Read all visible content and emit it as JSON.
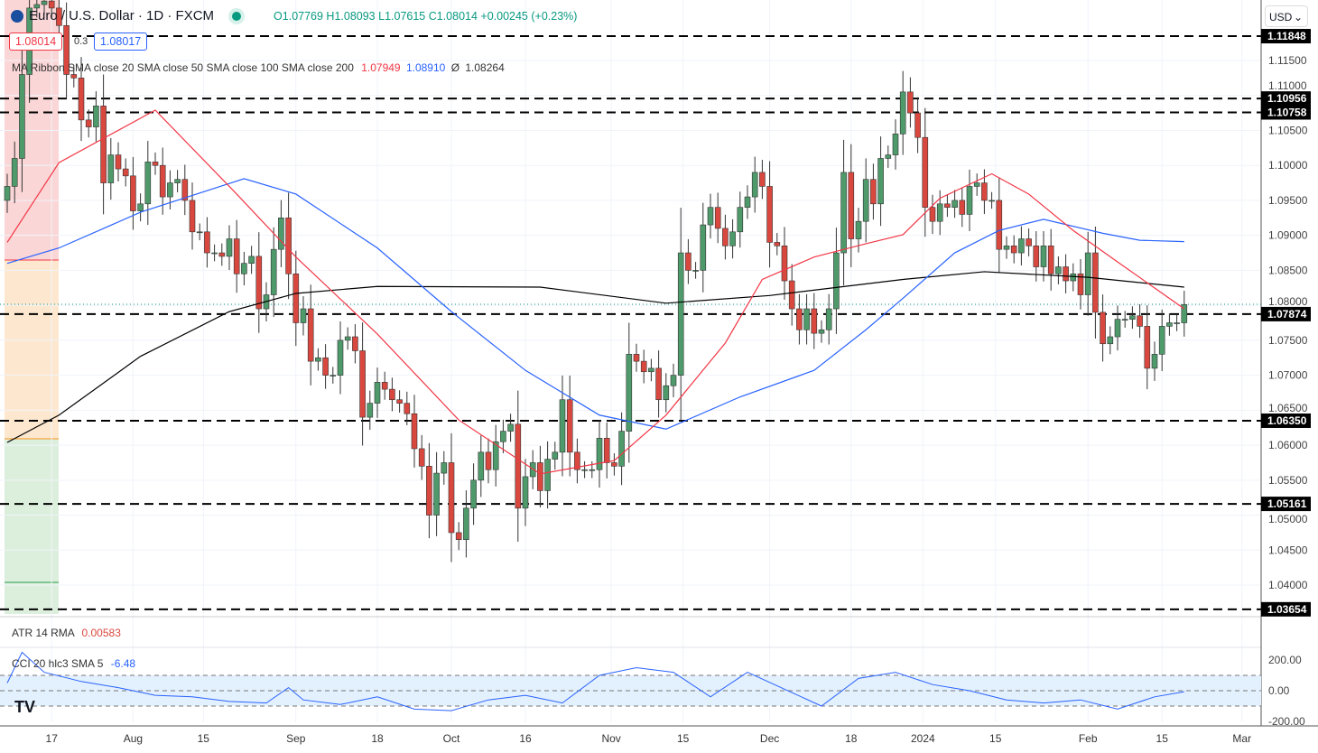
{
  "header": {
    "symbol": "Euro / U.S. Dollar · 1D · FXCM",
    "ohlc": "O1.07769 H1.08093 L1.07615 C1.08014 +0.00245 (+0.23%)",
    "bid": "1.08014",
    "spread": "0.3",
    "ask": "1.08017",
    "currency": "USD"
  },
  "legend": {
    "ma_label": "MA Ribbon SMA close 20 SMA close 50 SMA close 100 SMA close 200",
    "ma20": "1.07949",
    "ma50": "1.08910",
    "ma200_symbol": "Ø",
    "ma200": "1.08264",
    "atr_label": "ATR 14 RMA",
    "atr_value": "0.00583",
    "cci_label": "CCI 20 hlc3 SMA 5",
    "cci_value": "-6.48"
  },
  "colors": {
    "up": "#4f9a6b",
    "down": "#d9483f",
    "ma20": "#f23645",
    "ma50": "#2962ff",
    "ma200": "#000000",
    "cci": "#2962ff"
  },
  "chart_data": {
    "type": "candlestick",
    "ylim": [
      1.0345,
      1.1235
    ],
    "y_ticks": [
      "1.11500",
      "1.11000",
      "1.10500",
      "1.10000",
      "1.09500",
      "1.09000",
      "1.08500",
      "1.08000",
      "1.07500",
      "1.07000",
      "1.06500",
      "1.06000",
      "1.05500",
      "1.05000",
      "1.04500",
      "1.04000"
    ],
    "levels": [
      "1.11848",
      "1.10956",
      "1.10758",
      "1.07874",
      "1.06350",
      "1.05161",
      "1.03654"
    ],
    "x_ticks": [
      {
        "label": "17",
        "i": 6
      },
      {
        "label": "Aug",
        "i": 17
      },
      {
        "label": "15",
        "i": 26.5
      },
      {
        "label": "Sep",
        "i": 39
      },
      {
        "label": "18",
        "i": 50
      },
      {
        "label": "Oct",
        "i": 60
      },
      {
        "label": "16",
        "i": 70
      },
      {
        "label": "Nov",
        "i": 81.6
      },
      {
        "label": "15",
        "i": 91.3
      },
      {
        "label": "Dec",
        "i": 103
      },
      {
        "label": "18",
        "i": 114
      },
      {
        "label": "2024",
        "i": 123.7
      },
      {
        "label": "15",
        "i": 133.5
      },
      {
        "label": "Feb",
        "i": 146
      },
      {
        "label": "15",
        "i": 156
      },
      {
        "label": "Mar",
        "i": 166.8
      }
    ],
    "close": [
      1.097,
      1.101,
      1.113,
      1.1225,
      1.123,
      1.1235,
      1.1225,
      1.12,
      1.113,
      1.1125,
      1.1065,
      1.1055,
      1.1085,
      1.0975,
      1.1015,
      1.0995,
      1.0985,
      1.0935,
      1.0945,
      1.1005,
      1.1,
      1.0955,
      1.0975,
      1.098,
      1.095,
      1.0905,
      1.0905,
      1.0875,
      1.0875,
      1.087,
      1.0895,
      1.0845,
      1.086,
      1.087,
      1.0795,
      1.0815,
      1.088,
      1.0925,
      1.0845,
      1.0775,
      1.0795,
      1.072,
      1.0725,
      1.07,
      1.07,
      1.075,
      1.0755,
      1.0735,
      1.064,
      1.066,
      1.069,
      1.068,
      1.0665,
      1.066,
      1.0645,
      1.0595,
      1.057,
      1.05,
      1.056,
      1.0575,
      1.0475,
      1.0465,
      1.051,
      1.055,
      1.059,
      1.0565,
      1.0605,
      1.062,
      1.063,
      1.051,
      1.0555,
      1.0575,
      1.0535,
      1.058,
      1.059,
      1.0665,
      1.059,
      1.0565,
      1.0565,
      1.0565,
      1.061,
      1.0575,
      1.057,
      1.062,
      1.073,
      1.072,
      1.0705,
      1.071,
      1.0665,
      1.0685,
      1.07,
      1.0875,
      1.085,
      1.085,
      1.0915,
      1.094,
      1.091,
      1.0885,
      1.0905,
      1.094,
      1.0955,
      1.099,
      1.097,
      1.089,
      1.0885,
      1.0835,
      1.0795,
      1.0765,
      1.0795,
      1.076,
      1.0765,
      1.0795,
      1.0875,
      1.099,
      1.0895,
      1.092,
      1.098,
      1.0945,
      1.101,
      1.1015,
      1.1045,
      1.1105,
      1.1075,
      1.104,
      1.094,
      1.092,
      1.0945,
      1.094,
      1.095,
      1.093,
      1.097,
      1.0975,
      1.095,
      1.095,
      1.088,
      1.0885,
      1.0875,
      1.0895,
      1.0885,
      1.0855,
      1.0885,
      1.0845,
      1.0855,
      1.0835,
      1.0845,
      1.0815,
      1.0875,
      1.079,
      1.0745,
      1.0755,
      1.078,
      1.078,
      1.0785,
      1.077,
      1.071,
      1.073,
      1.077,
      1.0775,
      1.0775,
      1.0801
    ],
    "ma20": [
      [
        0,
        1.089
      ],
      [
        7,
        1.1004
      ],
      [
        20,
        1.1079
      ],
      [
        31,
        1.0959
      ],
      [
        39,
        1.0869
      ],
      [
        50,
        1.0759
      ],
      [
        61,
        1.0636
      ],
      [
        72,
        1.0559
      ],
      [
        82,
        1.0578
      ],
      [
        89,
        1.0643
      ],
      [
        97,
        1.0746
      ],
      [
        102,
        1.0837
      ],
      [
        109,
        1.0869
      ],
      [
        116,
        1.0888
      ],
      [
        121,
        1.0901
      ],
      [
        126,
        1.0953
      ],
      [
        133,
        1.0988
      ],
      [
        138,
        1.0959
      ],
      [
        144,
        1.0907
      ],
      [
        150,
        1.0862
      ],
      [
        159,
        1.0795
      ]
    ],
    "ma50": [
      [
        0,
        1.086
      ],
      [
        7,
        1.0882
      ],
      [
        18,
        1.0933
      ],
      [
        32,
        1.0981
      ],
      [
        39,
        1.0959
      ],
      [
        50,
        1.0882
      ],
      [
        60,
        1.0791
      ],
      [
        70,
        1.0707
      ],
      [
        80,
        1.0643
      ],
      [
        89,
        1.0623
      ],
      [
        99,
        1.0669
      ],
      [
        109,
        1.0707
      ],
      [
        116,
        1.0765
      ],
      [
        121,
        1.081
      ],
      [
        128,
        1.0875
      ],
      [
        134,
        1.0907
      ],
      [
        140,
        1.0923
      ],
      [
        148,
        1.0903
      ],
      [
        153,
        1.0893
      ],
      [
        159,
        1.0891
      ]
    ],
    "ma200": [
      [
        0,
        1.0604
      ],
      [
        7,
        1.0643
      ],
      [
        18,
        1.0727
      ],
      [
        30,
        1.0791
      ],
      [
        39,
        1.0817
      ],
      [
        50,
        1.0827
      ],
      [
        72,
        1.0826
      ],
      [
        89,
        1.0803
      ],
      [
        103,
        1.0814
      ],
      [
        121,
        1.0837
      ],
      [
        132,
        1.0848
      ],
      [
        146,
        1.084
      ],
      [
        159,
        1.0826
      ]
    ],
    "cci": {
      "y_ticks": [
        "200.00",
        "0.00",
        "-200.00"
      ],
      "points": [
        [
          0,
          50
        ],
        [
          2,
          250
        ],
        [
          5,
          120
        ],
        [
          10,
          60
        ],
        [
          15,
          20
        ],
        [
          20,
          -30
        ],
        [
          25,
          -40
        ],
        [
          30,
          -70
        ],
        [
          35,
          -80
        ],
        [
          38,
          20
        ],
        [
          40,
          -60
        ],
        [
          45,
          -90
        ],
        [
          50,
          -40
        ],
        [
          55,
          -120
        ],
        [
          60,
          -130
        ],
        [
          65,
          -60
        ],
        [
          70,
          -30
        ],
        [
          75,
          -80
        ],
        [
          80,
          100
        ],
        [
          85,
          150
        ],
        [
          90,
          120
        ],
        [
          95,
          -40
        ],
        [
          100,
          120
        ],
        [
          105,
          10
        ],
        [
          110,
          -100
        ],
        [
          115,
          80
        ],
        [
          120,
          120
        ],
        [
          125,
          40
        ],
        [
          130,
          0
        ],
        [
          135,
          -60
        ],
        [
          140,
          -80
        ],
        [
          145,
          -60
        ],
        [
          150,
          -120
        ],
        [
          155,
          -40
        ],
        [
          159,
          -6.48
        ]
      ]
    }
  }
}
